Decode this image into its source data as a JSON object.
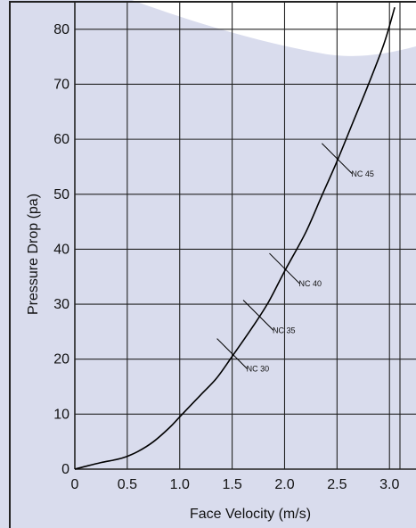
{
  "colors": {
    "background_panel": "#d9dced",
    "background_white": "#ffffff",
    "grid": "#222222",
    "curve": "#000000",
    "frame": "#222222"
  },
  "chart_data": {
    "type": "line",
    "title": "",
    "xlabel": "Face Velocity (m/s)",
    "ylabel": "Pressure Drop (pa)",
    "xlim": [
      0,
      3.1
    ],
    "ylim": [
      0,
      85
    ],
    "x_ticks": [
      0,
      0.5,
      1.0,
      1.5,
      2.0,
      2.5,
      3.0
    ],
    "x_tick_labels": [
      "0",
      "0.5",
      "1.0",
      "1.5",
      "2.0",
      "2.5",
      "3.0"
    ],
    "y_ticks": [
      0,
      10,
      20,
      30,
      40,
      50,
      60,
      70,
      80
    ],
    "y_tick_labels": [
      "0",
      "10",
      "20",
      "30",
      "40",
      "50",
      "60",
      "70",
      "80"
    ],
    "grid": true,
    "series": [
      {
        "x": [
          0,
          0.1,
          0.25,
          0.45,
          0.6,
          0.75,
          0.9,
          1.0,
          1.2,
          1.35,
          1.5,
          1.7,
          1.85,
          2.0,
          2.2,
          2.35,
          2.5,
          2.65,
          2.8,
          2.95,
          3.05
        ],
        "y": [
          0,
          0.5,
          1.2,
          2.0,
          3.2,
          5.0,
          7.5,
          9.5,
          13.5,
          16.5,
          20.5,
          26.0,
          30.5,
          36.0,
          43.0,
          49.5,
          56.0,
          63.0,
          70.0,
          77.5,
          84.0
        ]
      }
    ],
    "annotations": [
      {
        "text": "NC 30",
        "x": 1.5,
        "y": 20.5
      },
      {
        "text": "NC 35",
        "x": 1.75,
        "y": 27.5
      },
      {
        "text": "NC 40",
        "x": 2.0,
        "y": 36.0
      },
      {
        "text": "NC 45",
        "x": 2.5,
        "y": 56.0
      }
    ]
  }
}
